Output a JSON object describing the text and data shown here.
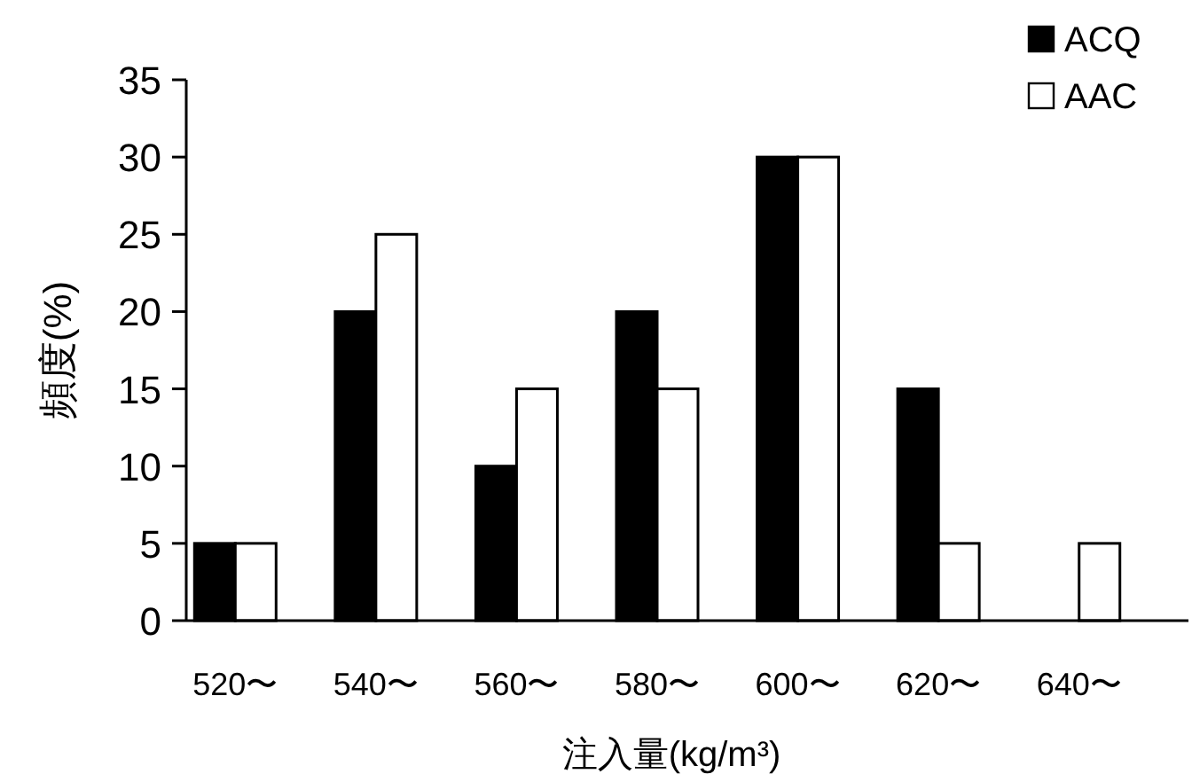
{
  "chart_data": {
    "type": "bar",
    "xlabel": "注入量(kg/m³)",
    "ylabel": "頻度(%)",
    "categories": [
      "520〜",
      "540〜",
      "560〜",
      "580〜",
      "600〜",
      "620〜",
      "640〜"
    ],
    "series": [
      {
        "name": "ACQ",
        "color": "#000000",
        "values": [
          5,
          20,
          10,
          20,
          30,
          15,
          0
        ]
      },
      {
        "name": "AAC",
        "color": "#ffffff",
        "values": [
          5,
          25,
          15,
          15,
          30,
          5,
          5
        ]
      }
    ],
    "ylim": [
      0,
      35
    ],
    "yticks": [
      0,
      5,
      10,
      15,
      20,
      25,
      30,
      35
    ],
    "grid": false,
    "legend": "top right"
  }
}
